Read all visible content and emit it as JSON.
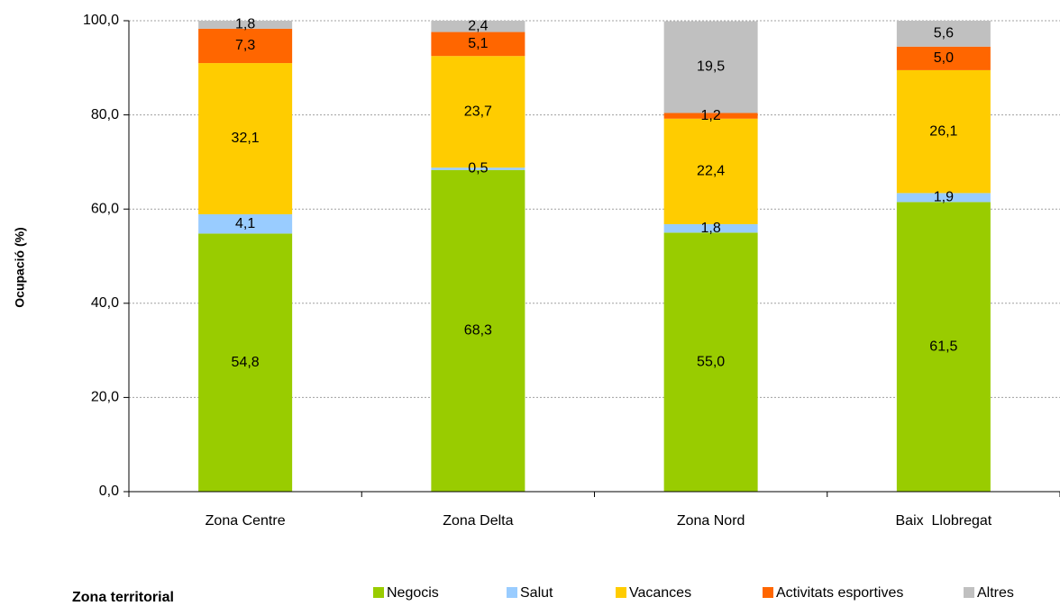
{
  "chart_data": {
    "type": "bar",
    "stacked": true,
    "ylabel": "Ocupació (%)",
    "xlabel": "Zona territorial",
    "ylim": [
      0,
      100
    ],
    "yticks": [
      "0,0",
      "20,0",
      "40,0",
      "60,0",
      "80,0",
      "100,0"
    ],
    "ytick_values": [
      0,
      20,
      40,
      60,
      80,
      100
    ],
    "grid": true,
    "legend_position": "bottom",
    "categories": [
      "Zona Centre",
      "Zona Delta",
      "Zona Nord",
      "Baix  Llobregat"
    ],
    "series": [
      {
        "name": "Negocis",
        "color": "#99cc00",
        "values": [
          54.8,
          68.3,
          55.0,
          61.5
        ],
        "labels": [
          "54,8",
          "68,3",
          "55,0",
          "61,5"
        ]
      },
      {
        "name": "Salut",
        "color": "#99ccff",
        "values": [
          4.1,
          0.5,
          1.8,
          1.9
        ],
        "labels": [
          "4,1",
          "0,5",
          "1,8",
          "1,9"
        ]
      },
      {
        "name": "Vacances",
        "color": "#ffcc00",
        "values": [
          32.1,
          23.7,
          22.4,
          26.1
        ],
        "labels": [
          "32,1",
          "23,7",
          "22,4",
          "26,1"
        ]
      },
      {
        "name": "Activitats esportives",
        "color": "#ff6600",
        "values": [
          7.3,
          5.1,
          1.2,
          5.0
        ],
        "labels": [
          "7,3",
          "5,1",
          "1,2",
          "5,0"
        ]
      },
      {
        "name": "Altres",
        "color": "#c0c0c0",
        "values": [
          1.8,
          2.4,
          19.5,
          5.6
        ],
        "labels": [
          "1,8",
          "2,4",
          "19,5",
          "5,6"
        ]
      }
    ]
  }
}
